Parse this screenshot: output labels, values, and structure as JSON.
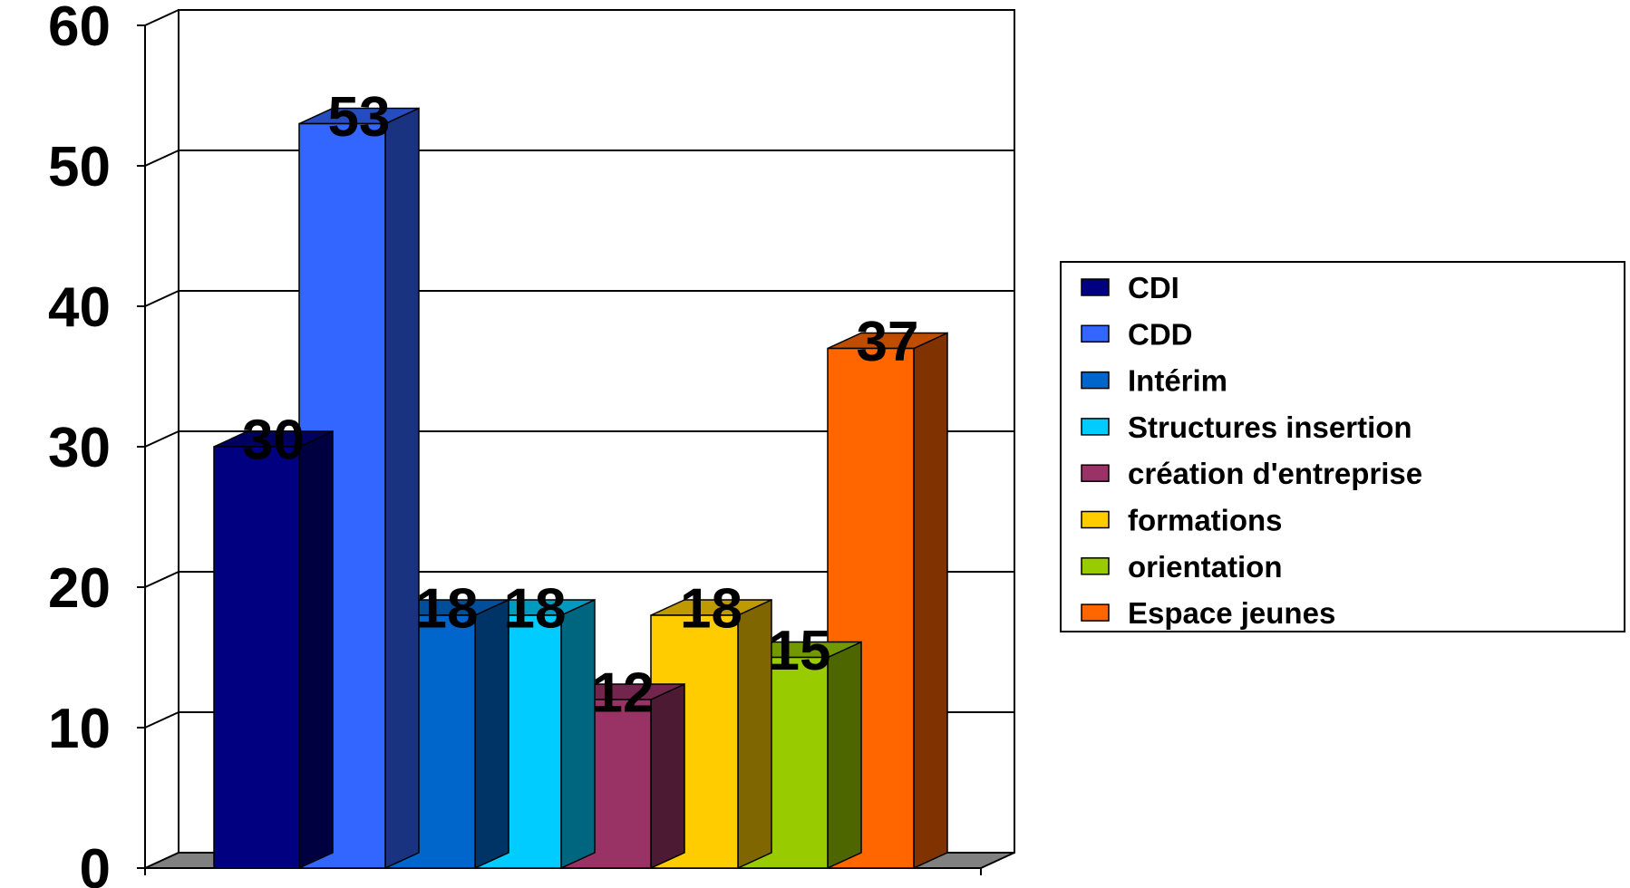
{
  "chart_data": {
    "type": "bar",
    "title": "",
    "xlabel": "",
    "ylabel": "",
    "ylim": [
      0,
      60
    ],
    "y_ticks": [
      "0",
      "10",
      "20",
      "30",
      "40",
      "50",
      "60"
    ],
    "grid": true,
    "legend_position": "right",
    "three_d": true,
    "series": [
      {
        "name": "CDI",
        "value": 30,
        "label": "30",
        "color": "#000080"
      },
      {
        "name": "CDD",
        "value": 53,
        "label": "53",
        "color": "#3366FF"
      },
      {
        "name": "Intérim",
        "value": 18,
        "label": "18",
        "color": "#0066CC"
      },
      {
        "name": "Structures  insertion",
        "value": 18,
        "label": "18",
        "color": "#00CCFF"
      },
      {
        "name": "création d'entreprise",
        "value": 12,
        "label": "12",
        "color": "#993366"
      },
      {
        "name": "formations",
        "value": 18,
        "label": "18",
        "color": "#FFCC00"
      },
      {
        "name": "orientation",
        "value": 15,
        "label": "15",
        "color": "#99CC00"
      },
      {
        "name": "Espace jeunes",
        "value": 37,
        "label": "37",
        "color": "#FF6600"
      }
    ]
  }
}
